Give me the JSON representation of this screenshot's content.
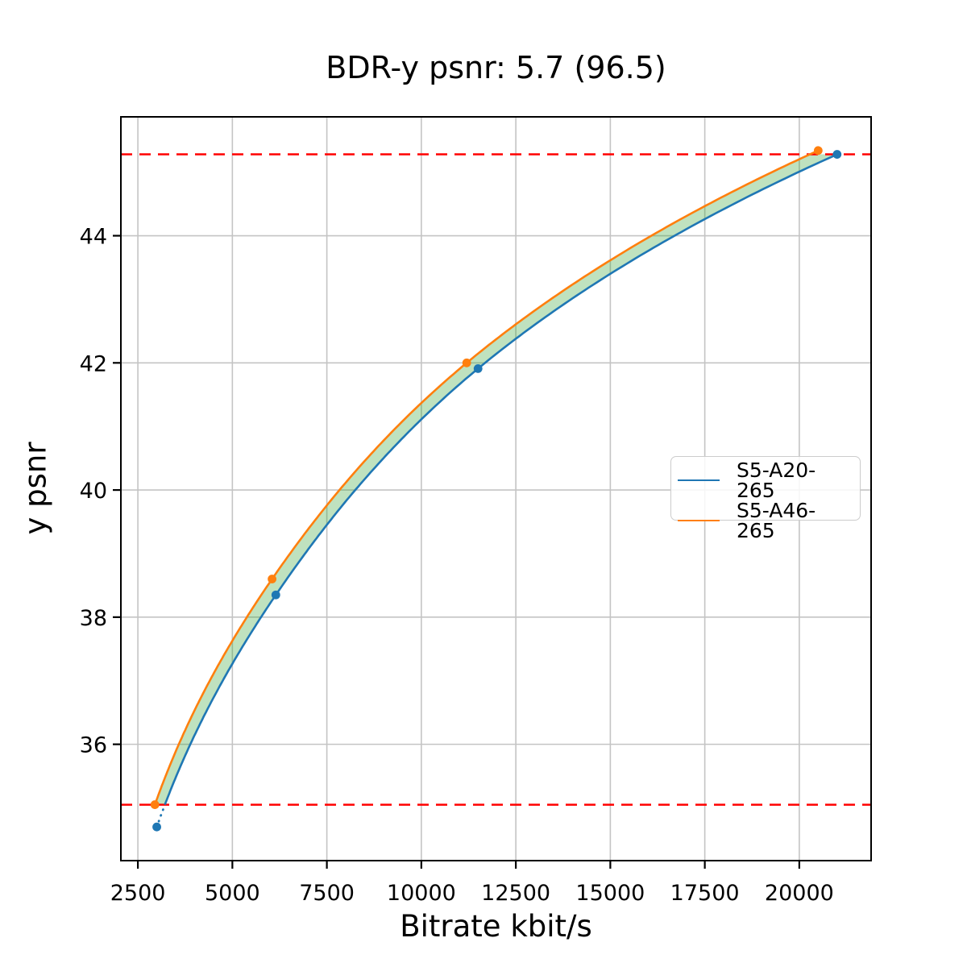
{
  "chart_data": {
    "type": "line",
    "title": "BDR-y psnr: 5.7 (96.5)",
    "xlabel": "Bitrate kbit/s",
    "ylabel": "y psnr",
    "xlim": [
      2050,
      21900
    ],
    "ylim": [
      34.17,
      45.87
    ],
    "xticks": [
      2500,
      5000,
      7500,
      10000,
      12500,
      15000,
      17500,
      20000
    ],
    "yticks": [
      36,
      38,
      40,
      42,
      44
    ],
    "grid": true,
    "grid_color": "#c4c4c4",
    "legend_position": "center-right",
    "bd_lines": {
      "low": 35.05,
      "high": 45.28,
      "color": "#ff0000",
      "style": "dashed"
    },
    "fill_between": {
      "color": "#2ca02c",
      "alpha": 0.3
    },
    "series": [
      {
        "name": "S5-A20-265",
        "color": "#1f77b4",
        "marker": "circle",
        "dotted_tail_below_low": true,
        "points": [
          [
            3000,
            34.7
          ],
          [
            6150,
            38.35
          ],
          [
            11500,
            41.91
          ],
          [
            21000,
            45.28
          ]
        ]
      },
      {
        "name": "S5-A46-265",
        "color": "#ff7f0e",
        "marker": "circle",
        "dotted_tail_below_low": false,
        "points": [
          [
            2950,
            35.05
          ],
          [
            6050,
            38.6
          ],
          [
            11200,
            42.0
          ],
          [
            20500,
            45.34
          ]
        ]
      }
    ]
  }
}
